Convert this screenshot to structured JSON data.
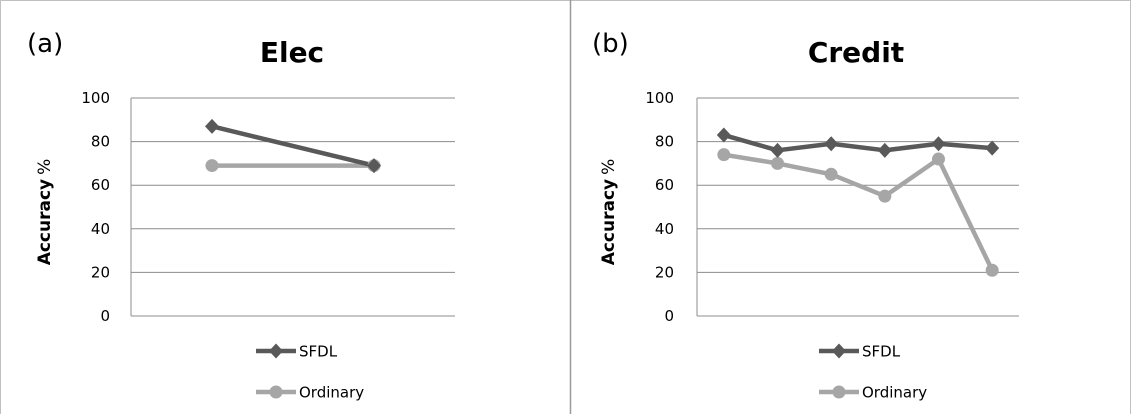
{
  "chart_data": [
    {
      "type": "line",
      "panel_label": "(a)",
      "title": "Elec",
      "xlabel": "",
      "ylabel": "Accuracy",
      "ylabel_unit": "%",
      "ylim": [
        0,
        100
      ],
      "yticks": [
        "0",
        "20",
        "40",
        "60",
        "80",
        "100"
      ],
      "grid": true,
      "legend_position": "bottom",
      "x": [
        1,
        2
      ],
      "series": [
        {
          "name": "SFDL",
          "values": [
            87,
            69
          ],
          "color": "#595959",
          "marker": "diamond"
        },
        {
          "name": "Ordinary",
          "values": [
            69,
            69
          ],
          "color": "#a6a6a6",
          "marker": "circle"
        }
      ]
    },
    {
      "type": "line",
      "panel_label": "(b)",
      "title": "Credit",
      "xlabel": "",
      "ylabel": "Accuracy",
      "ylabel_unit": "%",
      "ylim": [
        0,
        100
      ],
      "yticks": [
        "0",
        "20",
        "40",
        "60",
        "80",
        "100"
      ],
      "grid": true,
      "legend_position": "bottom",
      "x": [
        1,
        2,
        3,
        4,
        5,
        6
      ],
      "series": [
        {
          "name": "SFDL",
          "values": [
            83,
            76,
            79,
            76,
            79,
            77
          ],
          "color": "#595959",
          "marker": "diamond"
        },
        {
          "name": "Ordinary",
          "values": [
            74,
            70,
            65,
            55,
            72,
            21
          ],
          "color": "#a6a6a6",
          "marker": "circle"
        }
      ]
    }
  ]
}
